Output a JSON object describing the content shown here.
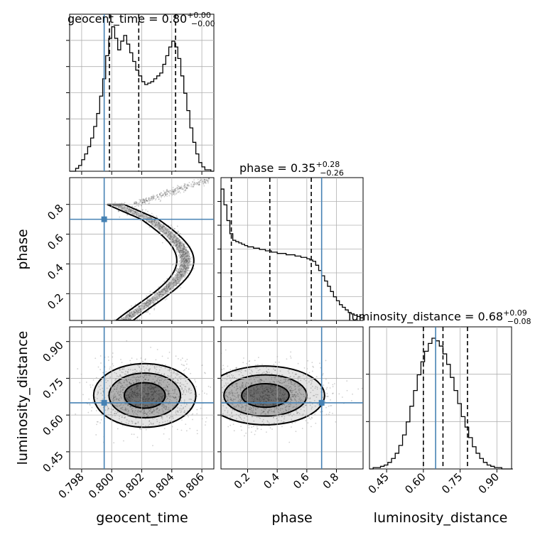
{
  "chart_data": {
    "type": "corner",
    "parameters": [
      "geocent_time",
      "phase",
      "luminosity_distance"
    ],
    "truths": {
      "geocent_time": 0.7995,
      "phase": 0.7,
      "luminosity_distance": 0.65
    },
    "titles": [
      {
        "param": "geocent_time",
        "text": "geocent_time = 0.80",
        "plus": "+0.00",
        "minus": "−0.00"
      },
      {
        "param": "phase",
        "text": "phase = 0.35",
        "plus": "+0.28",
        "minus": "−0.26"
      },
      {
        "param": "luminosity_distance",
        "text": "luminosity_distance = 0.68",
        "plus": "+0.09",
        "minus": "−0.08"
      }
    ],
    "axes": {
      "geocent_time": {
        "range": [
          0.7972,
          0.8068
        ],
        "ticks": [
          "0.798",
          "0.800",
          "0.802",
          "0.804",
          "0.806"
        ],
        "tick_values": [
          0.798,
          0.8,
          0.802,
          0.804,
          0.806
        ],
        "label": "geocent_time"
      },
      "phase": {
        "range": [
          0.02,
          0.98
        ],
        "ticks": [
          "0.2",
          "0.4",
          "0.6",
          "0.8"
        ],
        "tick_values": [
          0.2,
          0.4,
          0.6,
          0.8
        ],
        "label": "phase"
      },
      "luminosity_distance": {
        "range": [
          0.38,
          0.96
        ],
        "ticks": [
          "0.45",
          "0.60",
          "0.75",
          "0.90"
        ],
        "tick_values": [
          0.45,
          0.6,
          0.75,
          0.9
        ],
        "label": "luminosity_distance"
      }
    },
    "marginals": {
      "geocent_time": {
        "quantiles": [
          0.79985,
          0.8018,
          0.80425
        ],
        "bin_edges": [
          0.7972,
          0.7974,
          0.7976,
          0.7978,
          0.798,
          0.7982,
          0.7984,
          0.7986,
          0.7988,
          0.799,
          0.7992,
          0.7994,
          0.7996,
          0.7998,
          0.8,
          0.8002,
          0.8004,
          0.8006,
          0.8008,
          0.801,
          0.8012,
          0.8014,
          0.8016,
          0.8018,
          0.802,
          0.8022,
          0.8024,
          0.8026,
          0.8028,
          0.803,
          0.8032,
          0.8034,
          0.8036,
          0.8038,
          0.804,
          0.8042,
          0.8044,
          0.8046,
          0.8048,
          0.805,
          0.8052,
          0.8054,
          0.8056,
          0.8058,
          0.806,
          0.8062,
          0.8064,
          0.8066,
          0.8068
        ],
        "counts": [
          0,
          0,
          2,
          4,
          8,
          12,
          17,
          23,
          31,
          40,
          52,
          64,
          80,
          92,
          100,
          92,
          84,
          90,
          94,
          88,
          82,
          76,
          70,
          66,
          62,
          60,
          61,
          62,
          64,
          66,
          68,
          74,
          80,
          86,
          90,
          86,
          78,
          66,
          54,
          42,
          30,
          20,
          12,
          6,
          3,
          1,
          1,
          0
        ]
      },
      "phase": {
        "quantiles": [
          0.09,
          0.35,
          0.63
        ],
        "bin_edges": [
          0.02,
          0.04,
          0.06,
          0.08,
          0.1,
          0.12,
          0.14,
          0.16,
          0.18,
          0.2,
          0.22,
          0.24,
          0.26,
          0.28,
          0.3,
          0.32,
          0.34,
          0.36,
          0.38,
          0.4,
          0.42,
          0.44,
          0.46,
          0.48,
          0.5,
          0.52,
          0.54,
          0.56,
          0.58,
          0.6,
          0.62,
          0.64,
          0.66,
          0.68,
          0.7,
          0.72,
          0.74,
          0.76,
          0.78,
          0.8,
          0.82,
          0.84,
          0.86,
          0.88,
          0.9,
          0.92,
          0.94,
          0.96,
          0.98
        ],
        "counts": [
          100,
          88,
          76,
          66,
          61,
          60,
          59,
          58,
          57,
          56,
          56,
          55,
          55,
          54,
          54,
          53,
          53,
          52,
          52,
          51,
          51,
          51,
          50,
          50,
          50,
          49,
          49,
          48,
          48,
          47,
          46,
          45,
          42,
          38,
          34,
          30,
          26,
          22,
          18,
          15,
          12,
          10,
          8,
          6,
          5,
          4,
          3,
          2
        ]
      },
      "luminosity_distance": {
        "quantiles": [
          0.6,
          0.68,
          0.78
        ],
        "bin_edges": [
          0.38,
          0.395,
          0.41,
          0.425,
          0.44,
          0.455,
          0.47,
          0.485,
          0.5,
          0.515,
          0.53,
          0.545,
          0.56,
          0.575,
          0.59,
          0.605,
          0.62,
          0.635,
          0.65,
          0.665,
          0.68,
          0.695,
          0.71,
          0.725,
          0.74,
          0.755,
          0.77,
          0.785,
          0.8,
          0.815,
          0.83,
          0.845,
          0.86,
          0.875,
          0.89,
          0.905,
          0.92,
          0.935,
          0.95,
          0.965
        ],
        "counts": [
          0,
          1,
          1,
          2,
          3,
          5,
          8,
          12,
          18,
          26,
          36,
          48,
          60,
          72,
          82,
          90,
          96,
          100,
          98,
          94,
          88,
          80,
          70,
          60,
          50,
          40,
          32,
          24,
          17,
          12,
          8,
          5,
          3,
          2,
          1,
          1,
          0,
          0,
          0
        ]
      }
    }
  }
}
